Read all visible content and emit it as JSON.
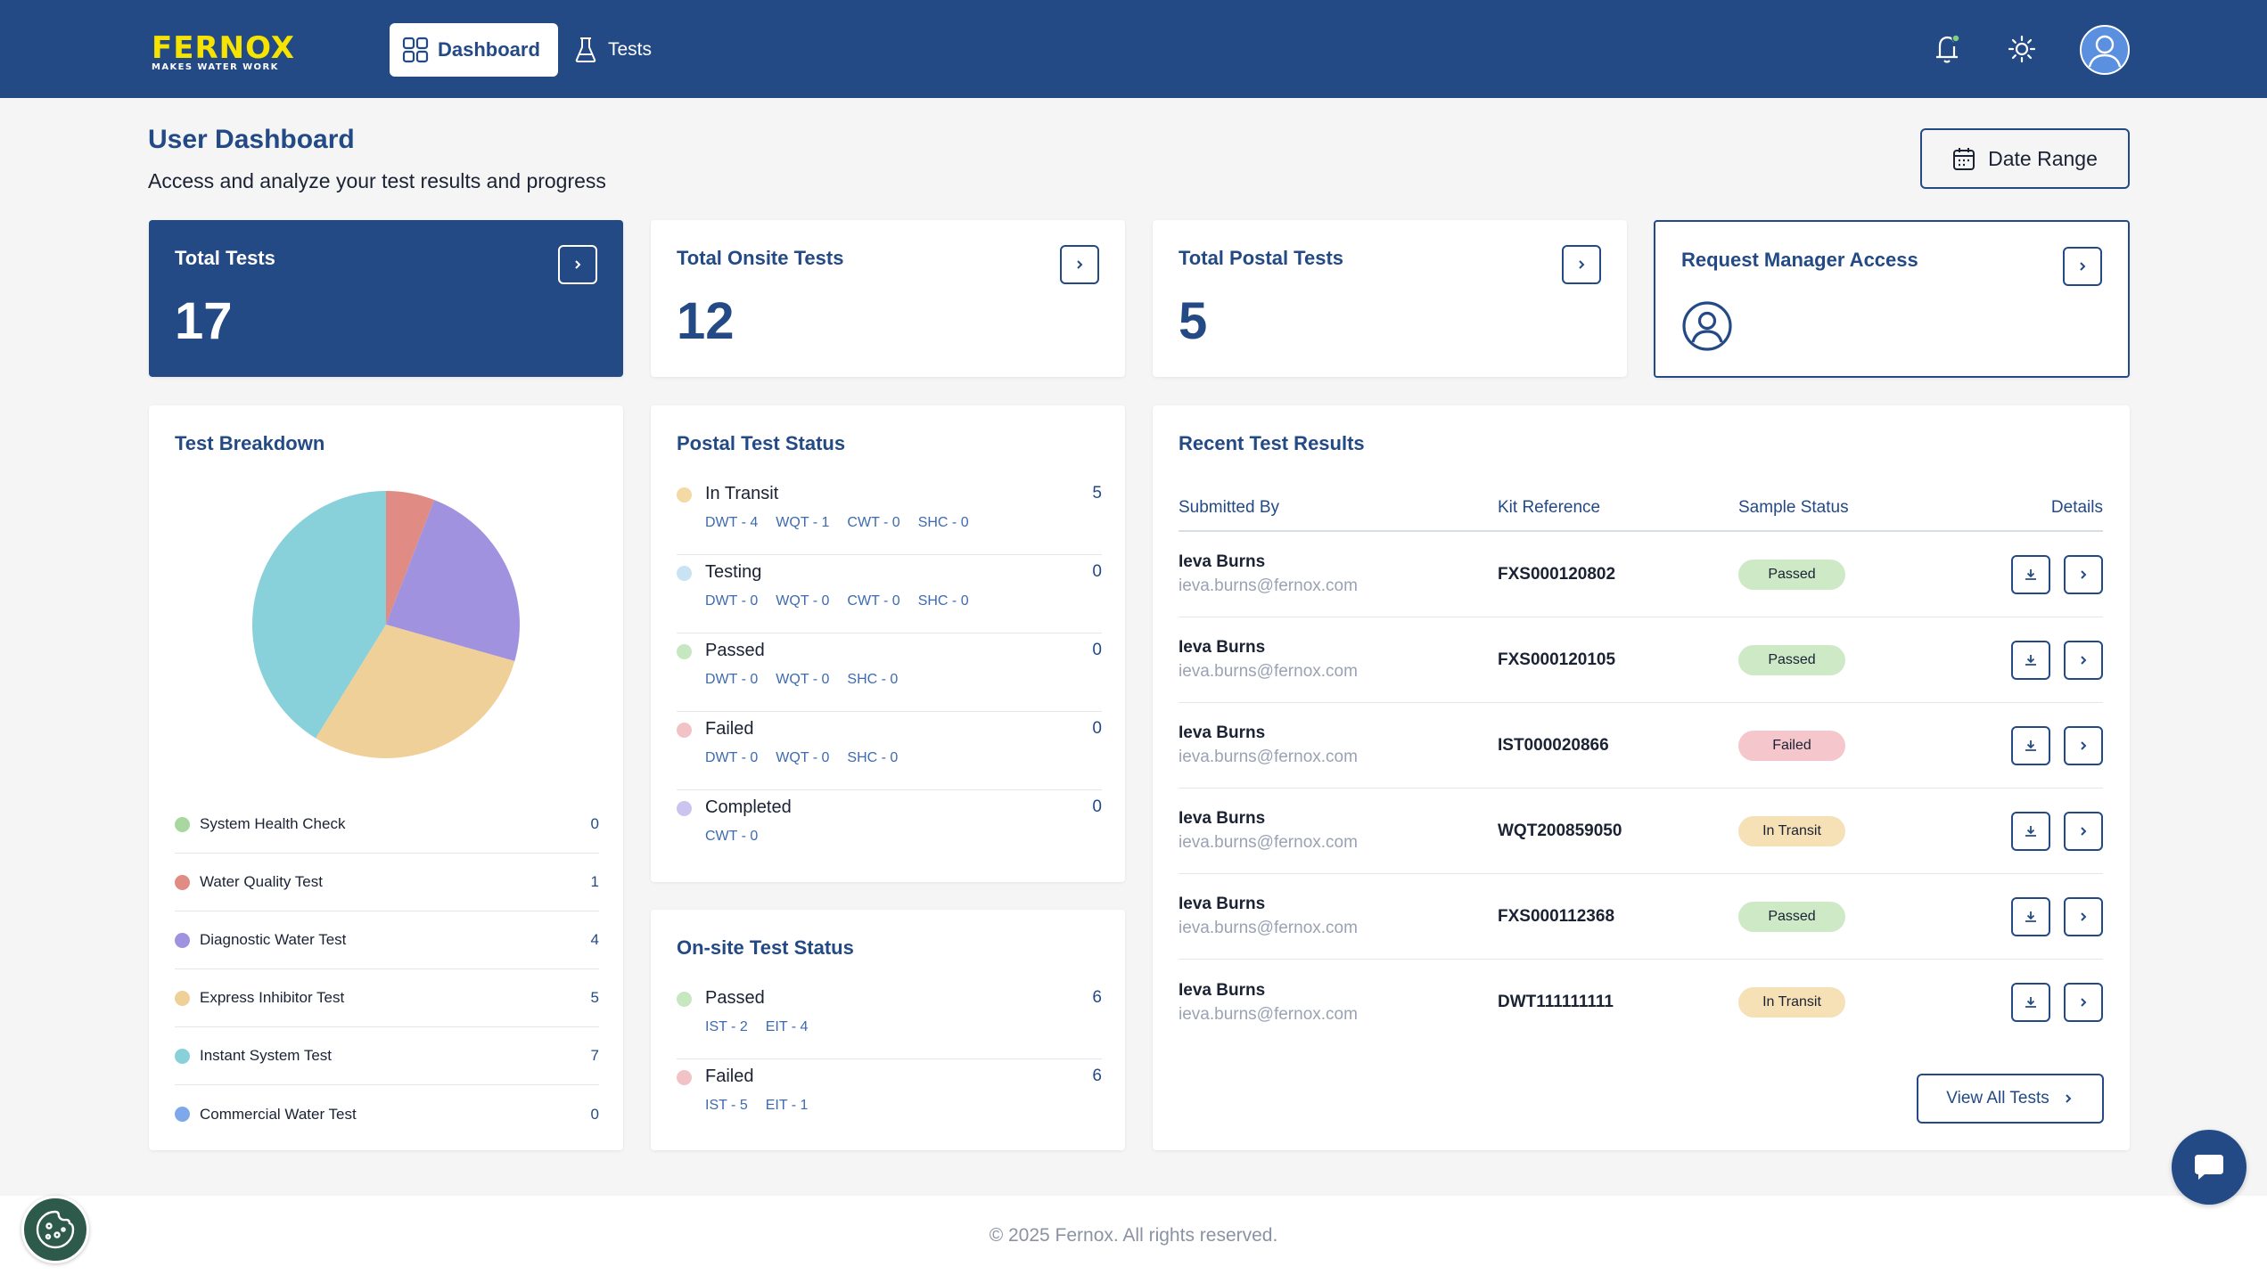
{
  "brand": {
    "name": "FERNOX",
    "tagline": "MAKES WATER WORK",
    "logo_color": "#f6e400"
  },
  "nav": {
    "items": [
      {
        "label": "Dashboard",
        "icon": "grid-icon",
        "active": true
      },
      {
        "label": "Tests",
        "icon": "flask-icon",
        "active": false
      }
    ],
    "icons": [
      "bell-icon",
      "sun-icon",
      "user-icon"
    ]
  },
  "page": {
    "title": "User Dashboard",
    "subtitle": "Access and analyze your test results and progress",
    "date_range_label": "Date Range"
  },
  "stats": [
    {
      "label": "Total Tests",
      "value": "17"
    },
    {
      "label": "Total Onsite Tests",
      "value": "12"
    },
    {
      "label": "Total Postal Tests",
      "value": "5"
    },
    {
      "label": "Request Manager Access"
    }
  ],
  "breakdown": {
    "title": "Test Breakdown",
    "items": [
      {
        "name": "System Health Check",
        "count": "0",
        "color": "#a8d8a0"
      },
      {
        "name": "Water Quality Test",
        "count": "1",
        "color": "#e08c84"
      },
      {
        "name": "Diagnostic Water Test",
        "count": "4",
        "color": "#a192e0"
      },
      {
        "name": "Express Inhibitor Test",
        "count": "5",
        "color": "#efd098"
      },
      {
        "name": "Instant System Test",
        "count": "7",
        "color": "#88d0da"
      },
      {
        "name": "Commercial Water Test",
        "count": "0",
        "color": "#7ea8ea"
      }
    ]
  },
  "chart_data": {
    "type": "pie",
    "title": "Test Breakdown",
    "categories": [
      "System Health Check",
      "Water Quality Test",
      "Diagnostic Water Test",
      "Express Inhibitor Test",
      "Instant System Test",
      "Commercial Water Test"
    ],
    "values": [
      0,
      1,
      4,
      5,
      7,
      0
    ],
    "colors": [
      "#a8d8a0",
      "#e08c84",
      "#a192e0",
      "#efd098",
      "#88d0da",
      "#7ea8ea"
    ],
    "legend": "bottom"
  },
  "postal": {
    "title": "Postal Test Status",
    "items": [
      {
        "name": "In Transit",
        "count": "5",
        "color": "#f3d9a3",
        "sub": [
          "DWT - 4",
          "WQT - 1",
          "CWT - 0",
          "SHC - 0"
        ]
      },
      {
        "name": "Testing",
        "count": "0",
        "color": "#c8e3f3",
        "sub": [
          "DWT - 0",
          "WQT - 0",
          "CWT - 0",
          "SHC - 0"
        ]
      },
      {
        "name": "Passed",
        "count": "0",
        "color": "#c6e7c0",
        "sub": [
          "DWT - 0",
          "WQT - 0",
          "SHC - 0"
        ]
      },
      {
        "name": "Failed",
        "count": "0",
        "color": "#f1c3c6",
        "sub": [
          "DWT - 0",
          "WQT - 0",
          "SHC - 0"
        ]
      },
      {
        "name": "Completed",
        "count": "0",
        "color": "#cbc4ef",
        "sub": [
          "CWT - 0"
        ]
      }
    ]
  },
  "onsite": {
    "title": "On-site Test Status",
    "items": [
      {
        "name": "Passed",
        "count": "6",
        "color": "#c6e7c0",
        "sub": [
          "IST - 2",
          "EIT - 4"
        ]
      },
      {
        "name": "Failed",
        "count": "6",
        "color": "#f1c3c6",
        "sub": [
          "IST - 5",
          "EIT - 1"
        ]
      }
    ]
  },
  "recent": {
    "title": "Recent Test Results",
    "columns": [
      "Submitted By",
      "Kit Reference",
      "Sample Status",
      "Details"
    ],
    "rows": [
      {
        "name": "Ieva Burns",
        "email": "ieva.burns@fernox.com",
        "kit": "FXS000120802",
        "status": "Passed"
      },
      {
        "name": "Ieva Burns",
        "email": "ieva.burns@fernox.com",
        "kit": "FXS000120105",
        "status": "Passed"
      },
      {
        "name": "Ieva Burns",
        "email": "ieva.burns@fernox.com",
        "kit": "IST000020866",
        "status": "Failed"
      },
      {
        "name": "Ieva Burns",
        "email": "ieva.burns@fernox.com",
        "kit": "WQT200859050",
        "status": "In Transit"
      },
      {
        "name": "Ieva Burns",
        "email": "ieva.burns@fernox.com",
        "kit": "FXS000112368",
        "status": "Passed"
      },
      {
        "name": "Ieva Burns",
        "email": "ieva.burns@fernox.com",
        "kit": "DWT111111111",
        "status": "In Transit"
      }
    ],
    "view_all_label": "View All Tests"
  },
  "footer": {
    "text": "© 2025 Fernox. All rights reserved."
  },
  "colors": {
    "primary": "#234a85",
    "background": "#f5f5f6"
  }
}
